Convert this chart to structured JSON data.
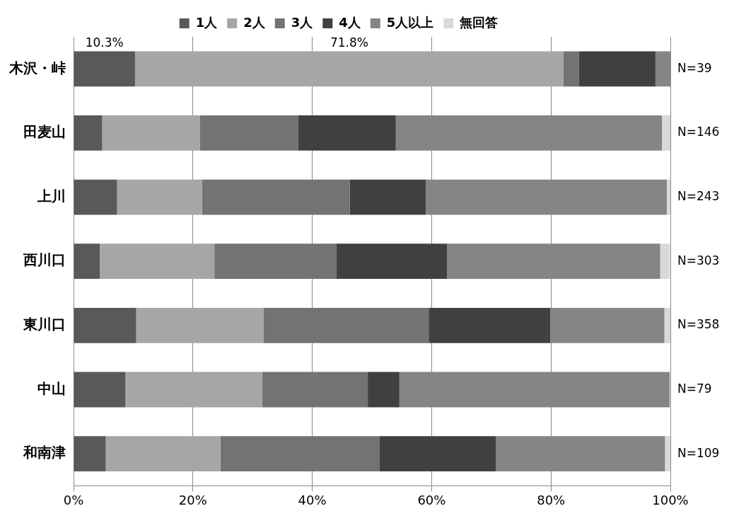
{
  "chart_data": {
    "type": "bar",
    "orientation": "horizontal",
    "stacked": true,
    "categories": [
      "木沢・峠",
      "田麦山",
      "上川",
      "西川口",
      "東川口",
      "中山",
      "和南津"
    ],
    "series": [
      {
        "name": "1人",
        "color": "#595959",
        "values": [
          10.3,
          4.8,
          7.3,
          4.4,
          10.5,
          8.7,
          5.4
        ],
        "value_labels": [
          "10.3%",
          null,
          null,
          null,
          null,
          null,
          null
        ]
      },
      {
        "name": "2人",
        "color": "#a6a6a6",
        "values": [
          71.8,
          16.4,
          14.2,
          19.2,
          21.3,
          22.9,
          19.2
        ],
        "value_labels": [
          "71.8%",
          null,
          null,
          null,
          null,
          null,
          null
        ]
      },
      {
        "name": "3人",
        "color": "#737373",
        "values": [
          2.6,
          16.4,
          24.8,
          20.4,
          27.7,
          17.7,
          26.7
        ]
      },
      {
        "name": "4人",
        "color": "#404040",
        "values": [
          12.8,
          16.4,
          12.7,
          18.6,
          20.4,
          5.3,
          19.5
        ]
      },
      {
        "name": "5人以上",
        "color": "#858585",
        "values": [
          2.6,
          44.6,
          40.4,
          35.7,
          19.1,
          45.3,
          28.3
        ]
      },
      {
        "name": "無回答",
        "color": "#d9d9d9",
        "values": [
          0,
          1.4,
          0.7,
          1.6,
          1.0,
          0,
          0.9
        ]
      }
    ],
    "xlim": [
      0,
      100
    ],
    "xticks": [
      {
        "value": 0,
        "label": "0%"
      },
      {
        "value": 20,
        "label": "20%"
      },
      {
        "value": 40,
        "label": "40%"
      },
      {
        "value": 60,
        "label": "60%"
      },
      {
        "value": 80,
        "label": "80%"
      },
      {
        "value": 100,
        "label": "100%"
      }
    ],
    "grid": "x",
    "legend": "top",
    "annotations": [
      "N=39",
      "N=146",
      "N=243",
      "N=303",
      "N=358",
      "N=79",
      "N=109"
    ]
  }
}
